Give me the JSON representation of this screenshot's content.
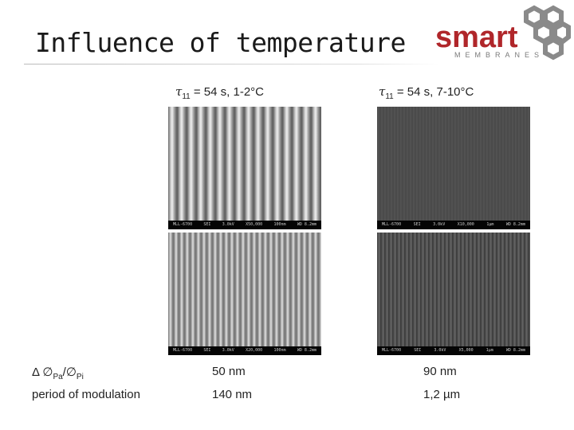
{
  "slide": {
    "title": "Influence of temperature"
  },
  "logo": {
    "word": "smart",
    "subtitle": "MEMBRANES",
    "color": "#b0262a",
    "hex_color": "#8a8a8a"
  },
  "columns": [
    {
      "tau": "τ",
      "sub": "11",
      "rest": " = 54 s, 1-2°C"
    },
    {
      "tau": "τ",
      "sub": "11",
      "rest": " = 54 s, 7-10°C"
    }
  ],
  "sem_images": [
    {
      "caption": [
        "MLL-6700",
        "SEI",
        "3.0kV",
        "X50,000",
        "100nm",
        "WD 8.2mm"
      ]
    },
    {
      "caption": [
        "MLL-6700",
        "SEI",
        "3.0kV",
        "X10,000",
        "1µm",
        "WD 8.2mm"
      ]
    },
    {
      "caption": [
        "MLL-6700",
        "SEI",
        "3.0kV",
        "X20,000",
        "100nm",
        "WD 8.2mm"
      ]
    },
    {
      "caption": [
        "MLL-6700",
        "SEI",
        "3.0kV",
        "X5,000",
        "1µm",
        "WD 8.2mm"
      ]
    }
  ],
  "rows": [
    {
      "label_pre": "Δ ∅",
      "label_sub1": "Pa",
      "label_mid": "/∅",
      "label_sub2": "Pi",
      "values": [
        "50 nm",
        "90 nm"
      ]
    },
    {
      "label": "period of  modulation",
      "values": [
        "140 nm",
        "1,2 µm"
      ]
    }
  ]
}
